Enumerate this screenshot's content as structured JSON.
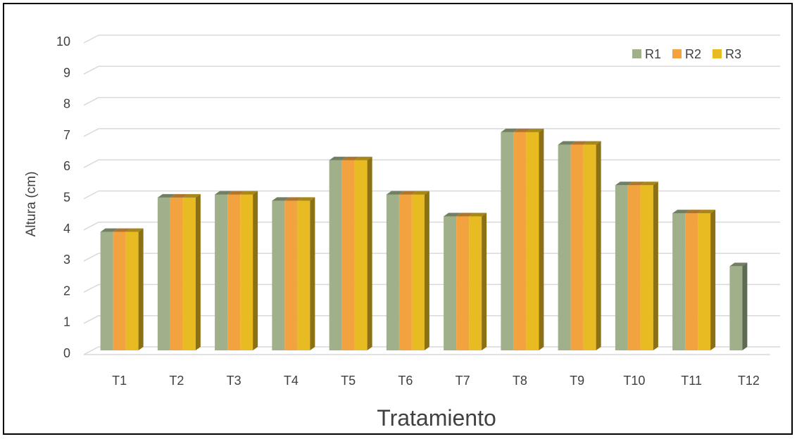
{
  "chart_data": {
    "type": "bar",
    "title": "",
    "xlabel": "Tratamiento",
    "ylabel": "Altura (cm)",
    "ylim": [
      0,
      10
    ],
    "yticks": [
      0,
      1,
      2,
      3,
      4,
      5,
      6,
      7,
      8,
      9,
      10
    ],
    "grid": true,
    "legend_position": "top-right",
    "style_3d": true,
    "categories": [
      "T1",
      "T2",
      "T3",
      "T4",
      "T5",
      "T6",
      "T7",
      "T8",
      "T9",
      "T10",
      "T11",
      "T12"
    ],
    "series": [
      {
        "name": "R1",
        "color": "#9fb08a",
        "values": [
          3.8,
          4.9,
          5.0,
          4.8,
          6.1,
          5.0,
          4.3,
          7.0,
          6.6,
          5.3,
          4.4,
          2.7
        ]
      },
      {
        "name": "R2",
        "color": "#f2a23f",
        "values": [
          3.8,
          4.9,
          5.0,
          4.8,
          6.1,
          5.0,
          4.3,
          7.0,
          6.6,
          5.3,
          4.4,
          0
        ]
      },
      {
        "name": "R3",
        "color": "#e8bb22",
        "values": [
          3.8,
          4.9,
          5.0,
          4.8,
          6.1,
          5.0,
          4.3,
          7.0,
          6.6,
          5.3,
          4.4,
          0
        ]
      }
    ]
  }
}
